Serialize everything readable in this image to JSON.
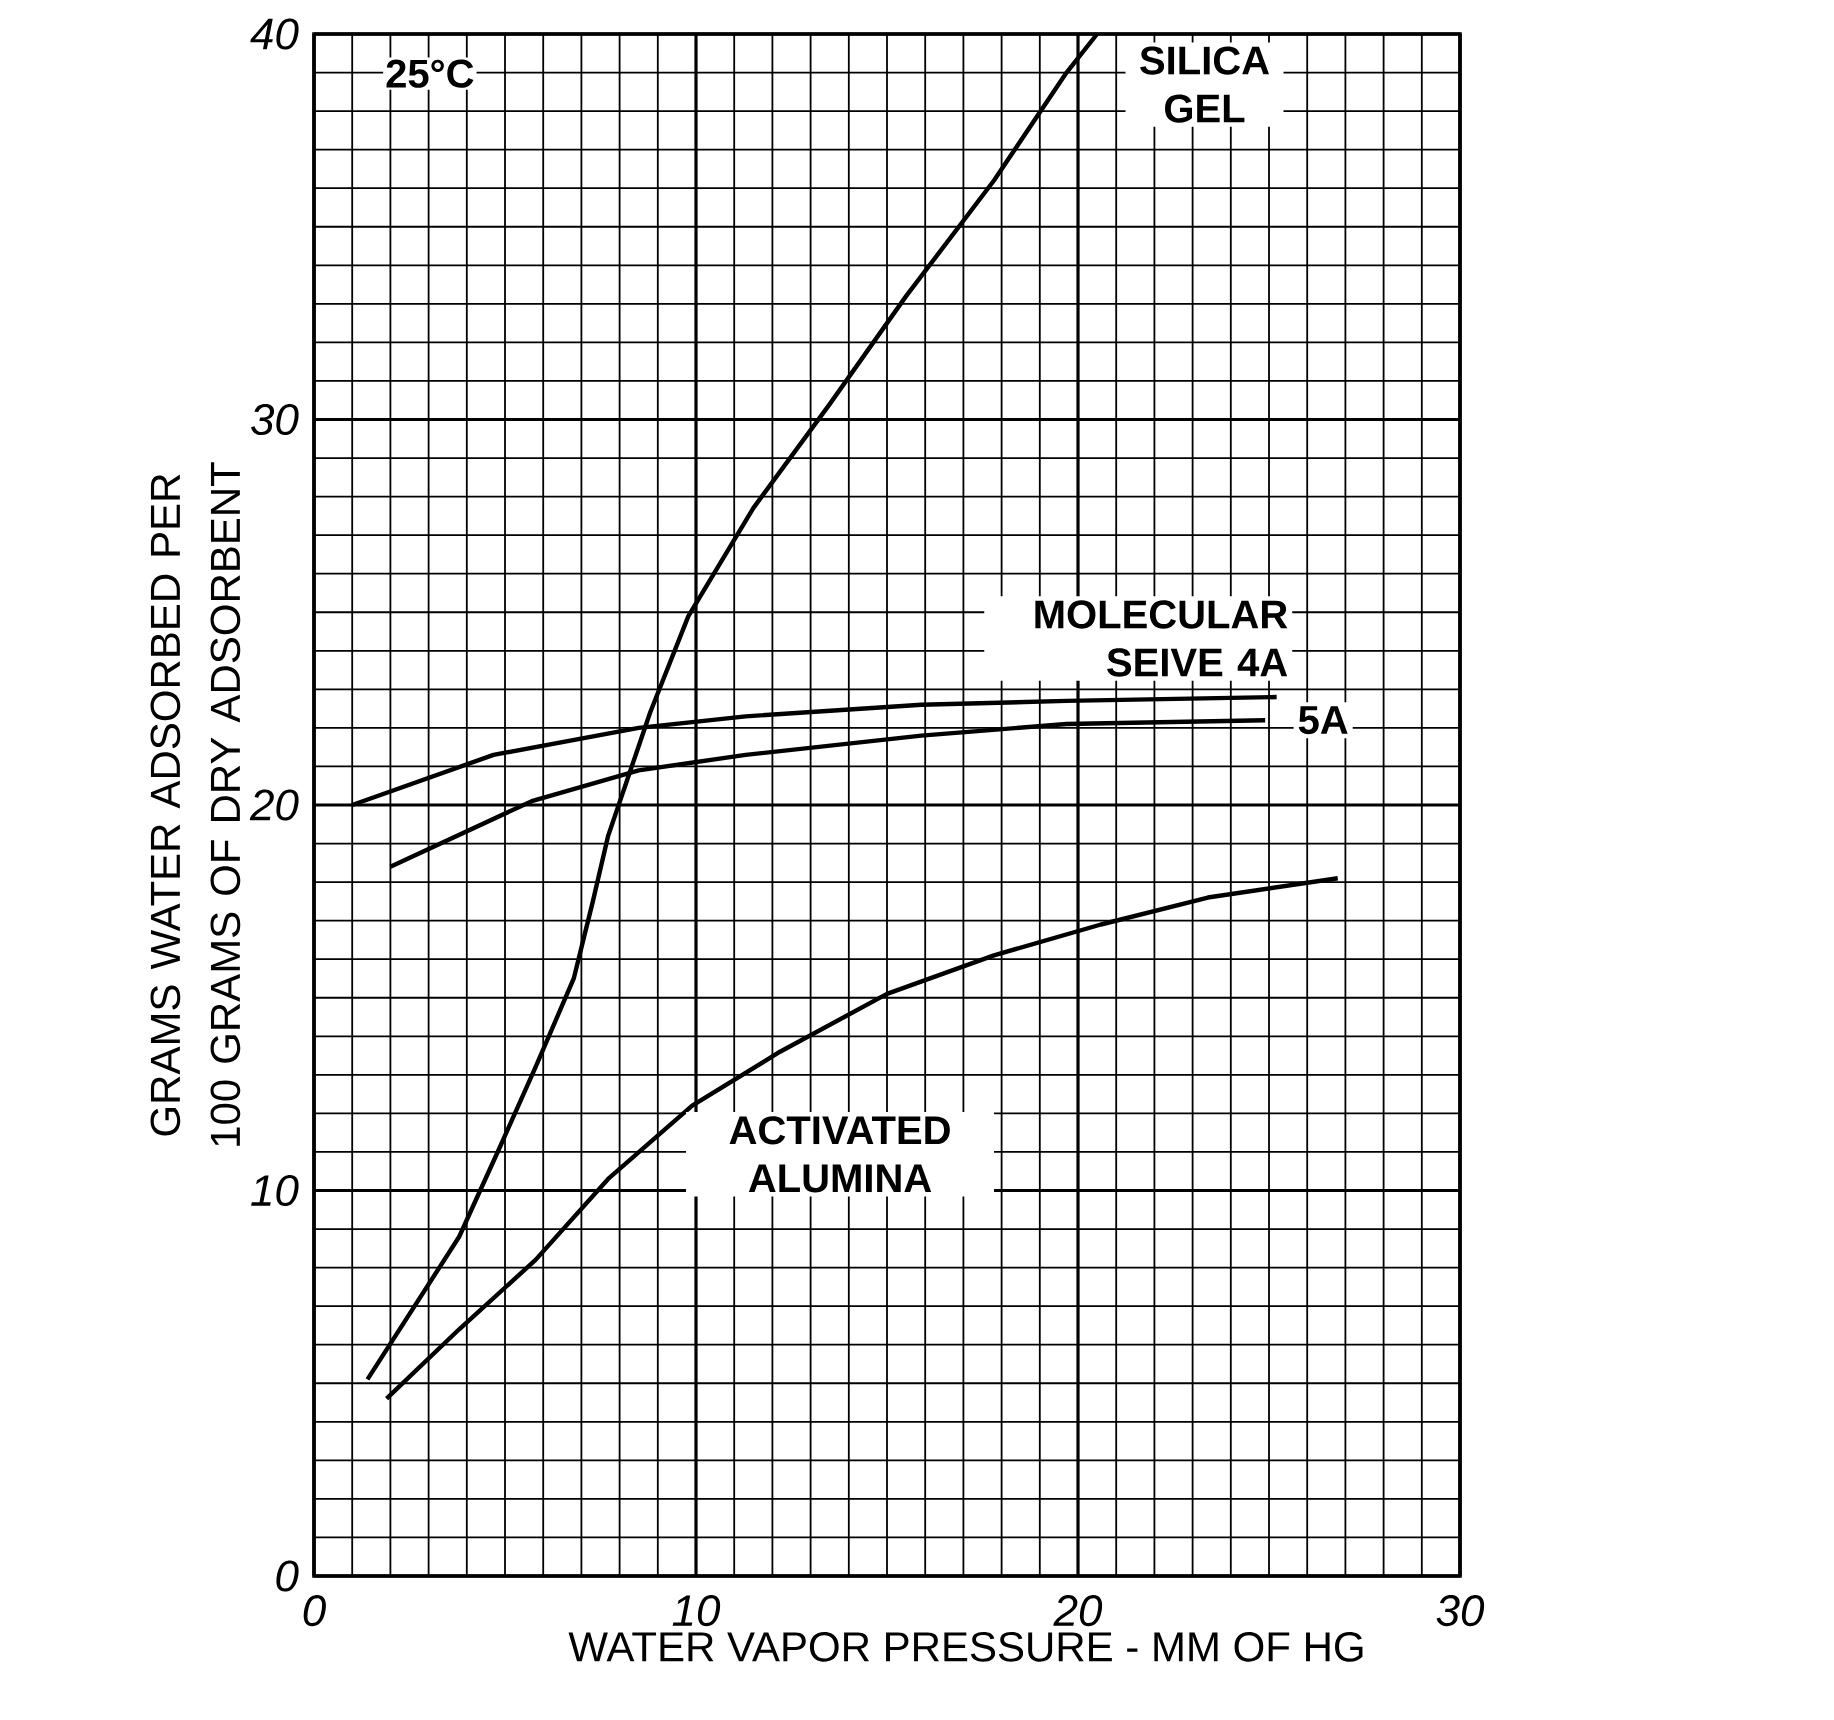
{
  "chart_data": {
    "type": "line",
    "xlabel": "WATER VAPOR PRESSURE - MM OF HG",
    "ylabel": "GRAMS WATER ADSORBED PER 100 GRAMS OF DRY ADSORBENT",
    "annotations": [
      "25°C"
    ],
    "xlim": [
      0,
      30
    ],
    "ylim": [
      0,
      40
    ],
    "xticks": [
      0,
      10,
      20,
      30
    ],
    "yticks": [
      0,
      10,
      20,
      30,
      40
    ],
    "grid": true,
    "legend": false,
    "marker": "none",
    "line_style": "solid",
    "series": [
      {
        "name": "SILICA GEL",
        "color": "#000000",
        "x": [
          1.4,
          3.8,
          4.9,
          5.8,
          6.8,
          7.3,
          7.7,
          8.8,
          9.8,
          11.5,
          13.5,
          15.5,
          17.8,
          19.7,
          20.5
        ],
        "values": [
          5.1,
          8.8,
          11.2,
          13.2,
          15.5,
          17.5,
          19.2,
          22.4,
          24.9,
          27.7,
          30.4,
          33.2,
          36.2,
          39,
          40
        ]
      },
      {
        "name": "MOLECULAR SEIVE 4A",
        "color": "#000000",
        "x": [
          1.0,
          4.7,
          8.5,
          11.3,
          15.9,
          19.7,
          25.2
        ],
        "values": [
          20.0,
          21.3,
          22.0,
          22.3,
          22.6,
          22.7,
          22.8
        ]
      },
      {
        "name": "5A",
        "color": "#000000",
        "x": [
          2.0,
          5.7,
          8.5,
          11.3,
          15.9,
          19.7,
          24.9
        ],
        "values": [
          18.4,
          20.1,
          20.9,
          21.3,
          21.8,
          22.1,
          22.2
        ]
      },
      {
        "name": "ACTIVATED ALUMINA",
        "color": "#000000",
        "x": [
          1.9,
          3.8,
          5.8,
          7.7,
          9.9,
          12.2,
          15.0,
          17.8,
          20.6,
          23.4,
          26.8
        ],
        "values": [
          4.6,
          6.4,
          8.2,
          10.3,
          12.2,
          13.6,
          15.1,
          16.1,
          16.9,
          17.6,
          18.1
        ]
      }
    ]
  }
}
